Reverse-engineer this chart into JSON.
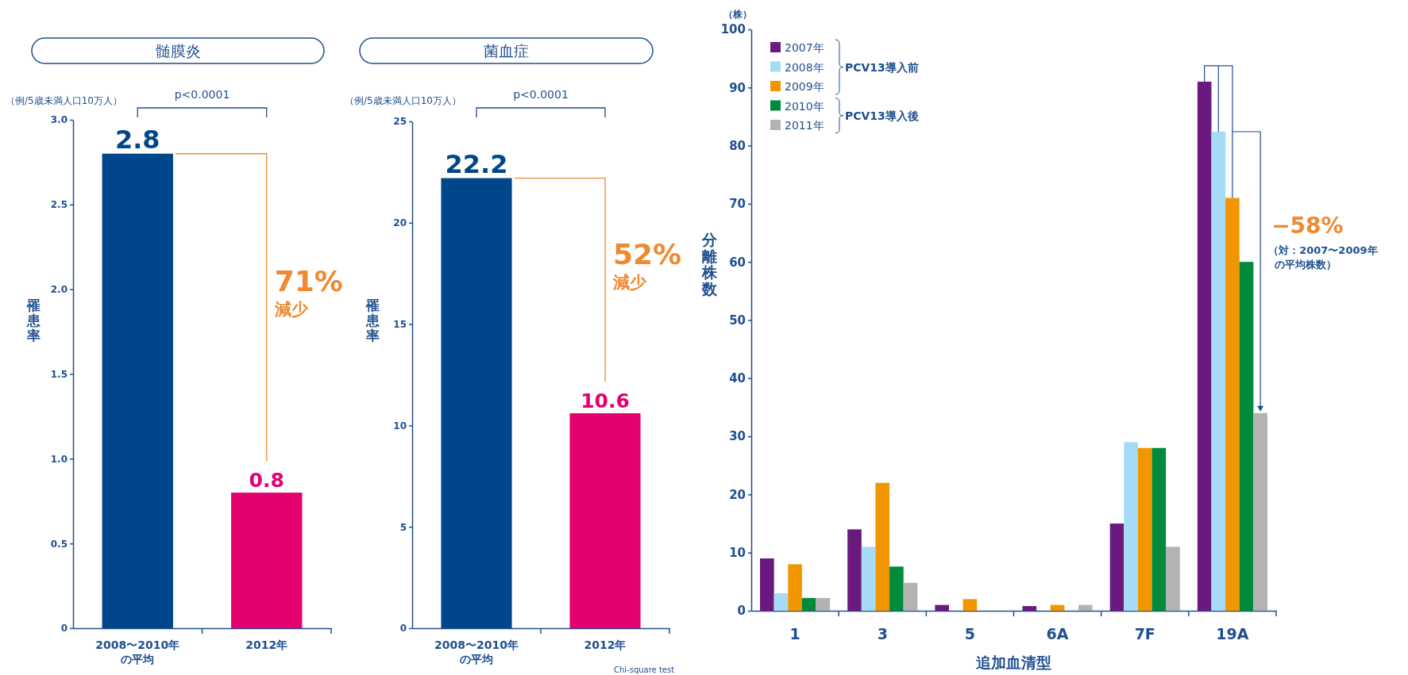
{
  "chart_data": [
    {
      "type": "bar",
      "title": "髄膜炎",
      "ylabel": "罹患率",
      "categories": [
        "2008〜2010年の平均",
        "2012年"
      ],
      "values": [
        2.8,
        0.8
      ],
      "colors": [
        "#00468b",
        "#e4006e"
      ],
      "data_labels": true,
      "ylim": [
        0,
        3
      ],
      "yticks": [
        0,
        {
          "value": 0.5,
          "label": "0.5"
        },
        {
          "value": 1,
          "label": "1.0"
        },
        {
          "value": 1.5,
          "label": "1.5"
        },
        {
          "value": 2,
          "label": "2.0"
        },
        {
          "value": 2.5,
          "label": "2.5"
        },
        {
          "value": 3,
          "label": "3.0"
        }
      ],
      "grid": false,
      "annotations": [
        "（例/5歳未満人口10万人）",
        "p<0.0001",
        "71%",
        "減少"
      ]
    },
    {
      "type": "bar",
      "title": "菌血症",
      "ylabel": "罹患率",
      "categories": [
        "2008〜2010年の平均",
        "2012年"
      ],
      "values": [
        22.2,
        10.6
      ],
      "colors": [
        "#00468b",
        "#e4006e"
      ],
      "data_labels": true,
      "ylim": [
        0,
        25
      ],
      "yticks": [
        0,
        5,
        10,
        15,
        20,
        25
      ],
      "grid": false,
      "annotations": [
        "（例/5歳未満人口10万人）",
        "p<0.0001",
        "52%",
        "減少",
        "Chi-square test"
      ]
    },
    {
      "type": "bar",
      "xlabel": "追加血清型",
      "ylabel": "分離株数",
      "categories": [
        "1",
        "3",
        "5",
        "6A",
        "7F",
        "19A"
      ],
      "ylim": [
        0,
        100
      ],
      "yticks": [
        0,
        10,
        20,
        30,
        40,
        50,
        60,
        70,
        80,
        90,
        100
      ],
      "grid": false,
      "legend": "top left",
      "series": [
        {
          "name": "2007年",
          "color": "#6a1a7f",
          "values": [
            9,
            14,
            1,
            0.8,
            15,
            91
          ]
        },
        {
          "name": "2008年",
          "color": "#a6dbf5",
          "values": [
            3,
            11,
            0,
            0,
            29,
            82.4
          ]
        },
        {
          "name": "2009年",
          "color": "#f29600",
          "values": [
            8,
            22,
            2,
            1,
            28,
            71
          ]
        },
        {
          "name": "2010年",
          "color": "#008a3c",
          "values": [
            2.2,
            7.6,
            0,
            0,
            28,
            60
          ]
        },
        {
          "name": "2011年",
          "color": "#b3b3b3",
          "values": [
            2.2,
            4.8,
            0,
            1,
            11,
            34
          ]
        }
      ],
      "annotations": [
        "（株）",
        "PCV13導入前",
        "PCV13導入後",
        "−58%",
        "（対：2007〜2009年",
        "の平均株数）"
      ]
    }
  ]
}
